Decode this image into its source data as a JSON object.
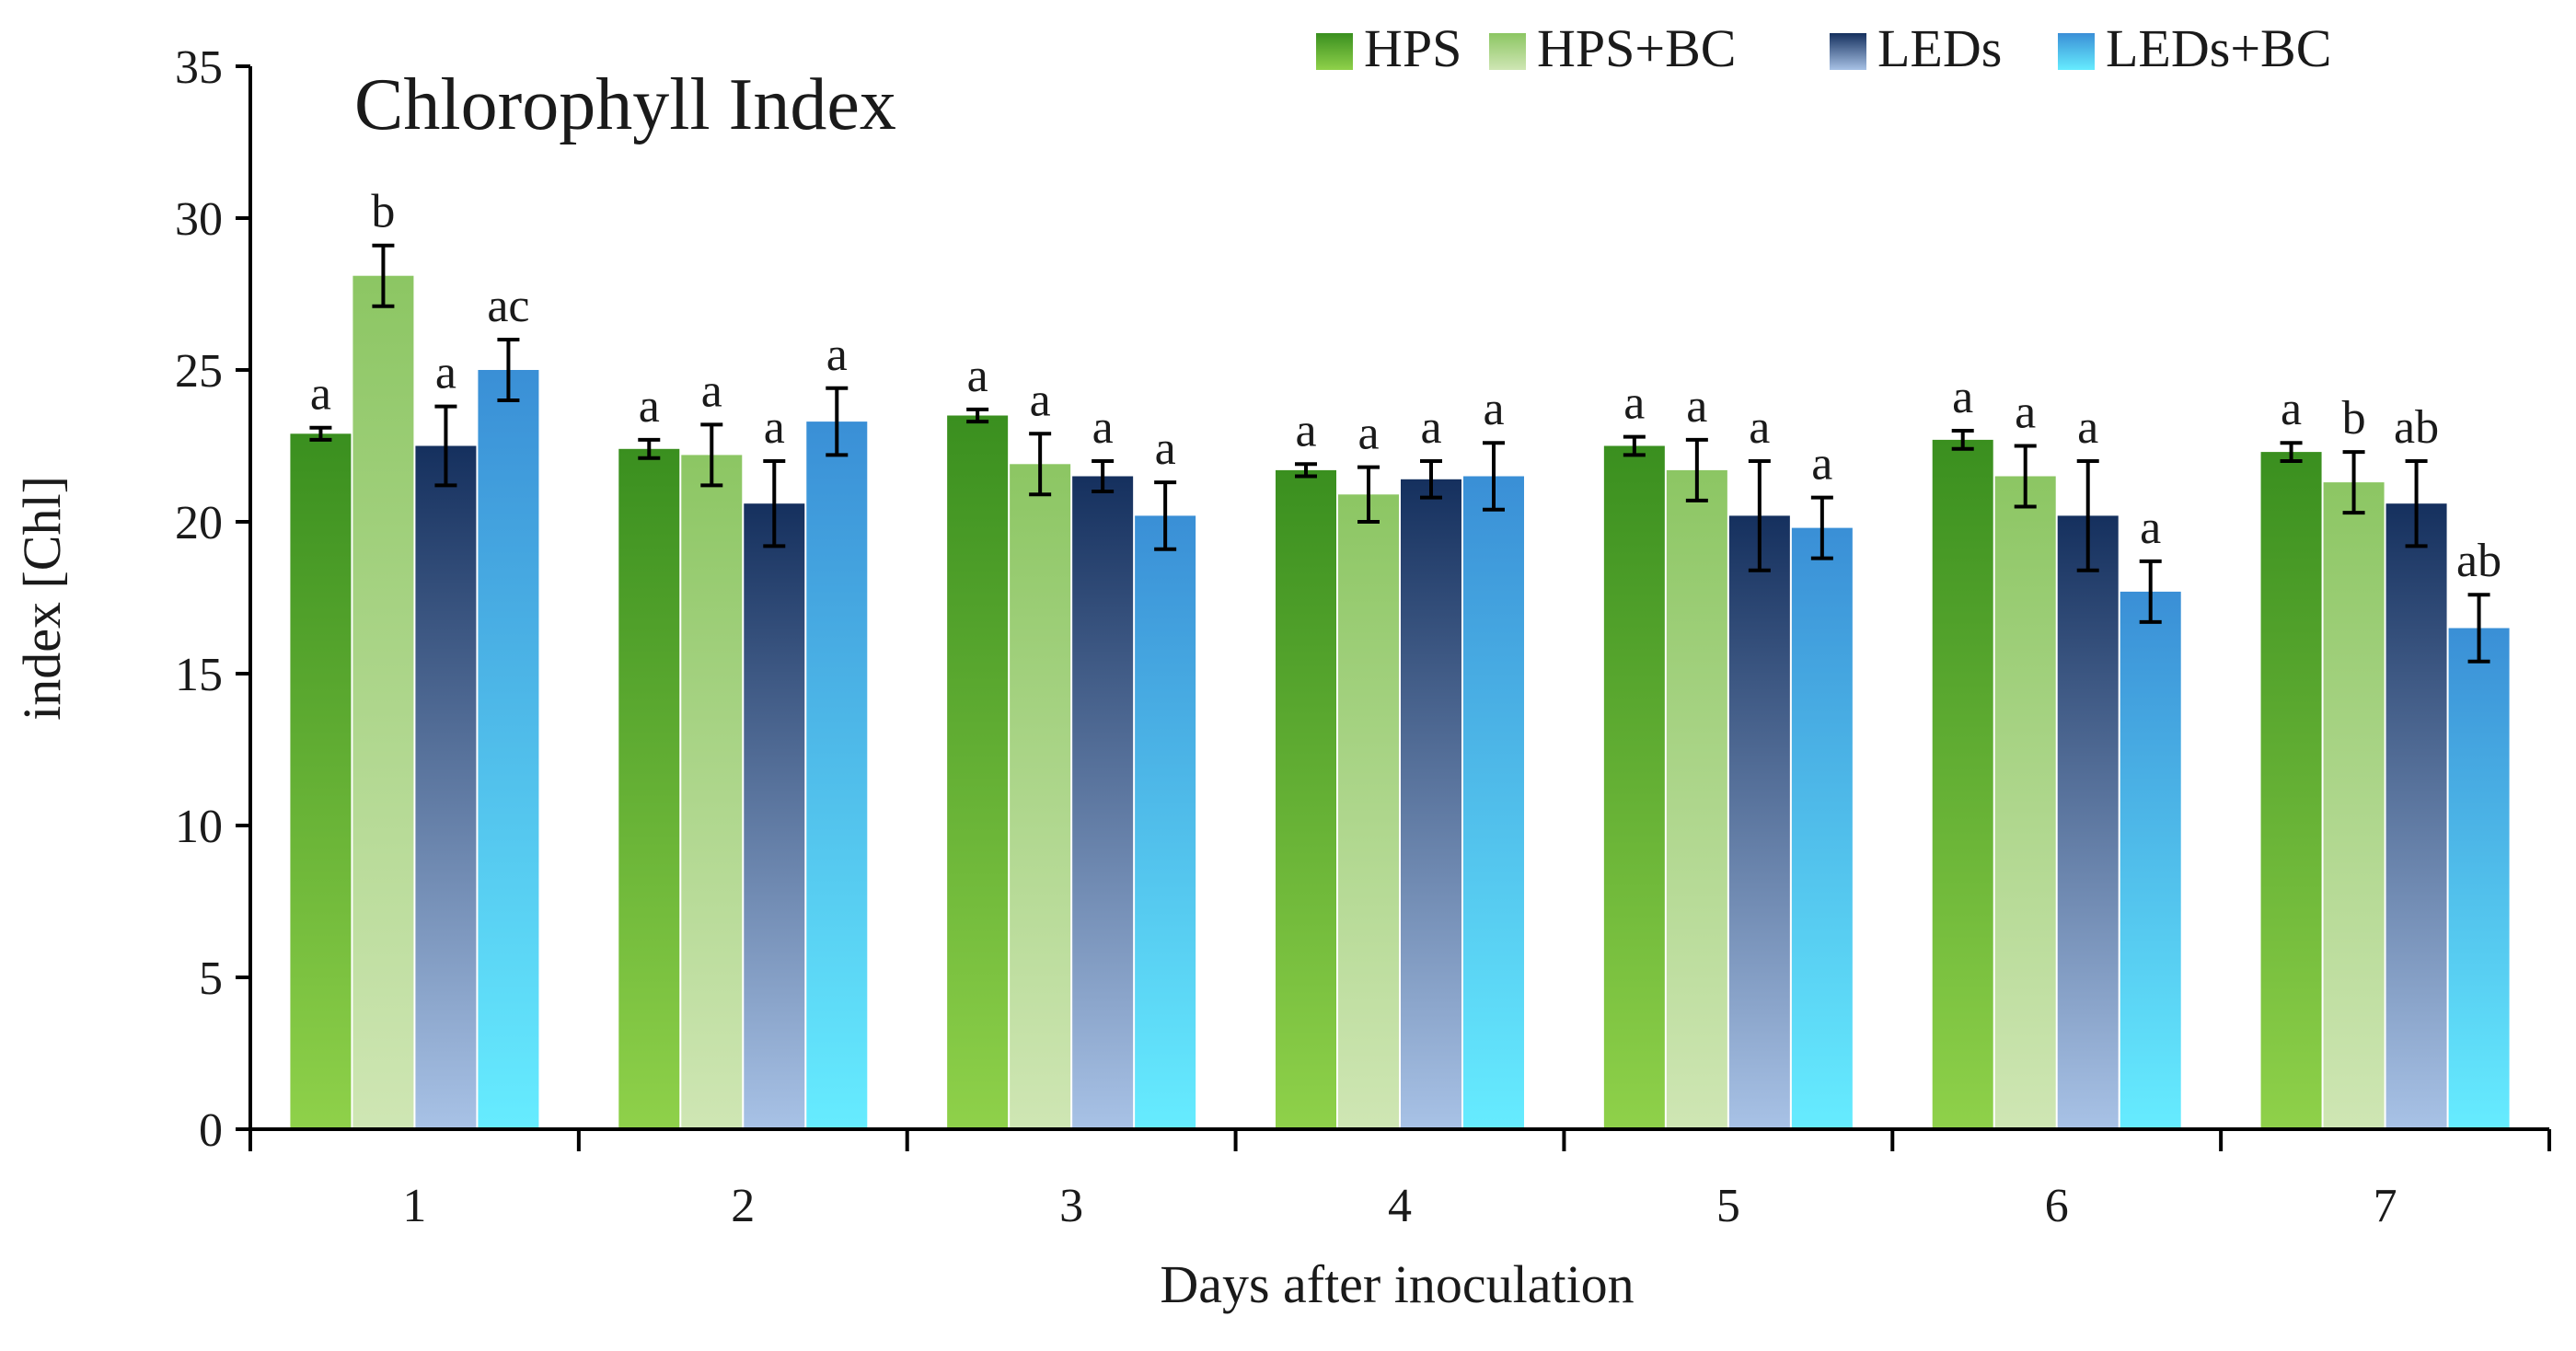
{
  "chart_data": {
    "type": "bar",
    "title": "Chlorophyll Index",
    "xlabel": "Days after inoculation",
    "ylabel": "index [Chl]",
    "ylim": [
      0,
      35
    ],
    "yticks": [
      0,
      5,
      10,
      15,
      20,
      25,
      30,
      35
    ],
    "categories": [
      "1",
      "2",
      "3",
      "4",
      "5",
      "6",
      "7"
    ],
    "legend_position": "top-right",
    "grid": false,
    "series": [
      {
        "name": "HPS",
        "color_top": "#3a8f1f",
        "color_bottom": "#8fd14a",
        "values": [
          22.9,
          22.4,
          23.5,
          21.7,
          22.5,
          22.7,
          22.3
        ],
        "errors": [
          0.2,
          0.3,
          0.2,
          0.2,
          0.3,
          0.3,
          0.3
        ],
        "letters": [
          "a",
          "a",
          "a",
          "a",
          "a",
          "a",
          "a"
        ]
      },
      {
        "name": "HPS+BC",
        "color_top": "#8cc663",
        "color_bottom": "#cfe6b4",
        "values": [
          28.1,
          22.2,
          21.9,
          20.9,
          21.7,
          21.5,
          21.3
        ],
        "errors": [
          1.0,
          1.0,
          1.0,
          0.9,
          1.0,
          1.0,
          1.0
        ],
        "letters": [
          "b",
          "a",
          "a",
          "a",
          "a",
          "a",
          "b"
        ]
      },
      {
        "name": "LEDs",
        "color_top": "#15305e",
        "color_bottom": "#a8c2e6",
        "values": [
          22.5,
          20.6,
          21.5,
          21.4,
          20.2,
          20.2,
          20.6
        ],
        "errors": [
          1.3,
          1.4,
          0.5,
          0.6,
          1.8,
          1.8,
          1.4
        ],
        "letters": [
          "a",
          "a",
          "a",
          "a",
          "a",
          "a",
          "ab"
        ]
      },
      {
        "name": "LEDs+BC",
        "color_top": "#3a8fd6",
        "color_bottom": "#66ecff",
        "values": [
          25.0,
          23.3,
          20.2,
          21.5,
          19.8,
          17.7,
          16.5
        ],
        "errors": [
          1.0,
          1.1,
          1.1,
          1.1,
          1.0,
          1.0,
          1.1
        ],
        "letters": [
          "ac",
          "a",
          "a",
          "a",
          "a",
          "a",
          "ab"
        ]
      }
    ]
  }
}
